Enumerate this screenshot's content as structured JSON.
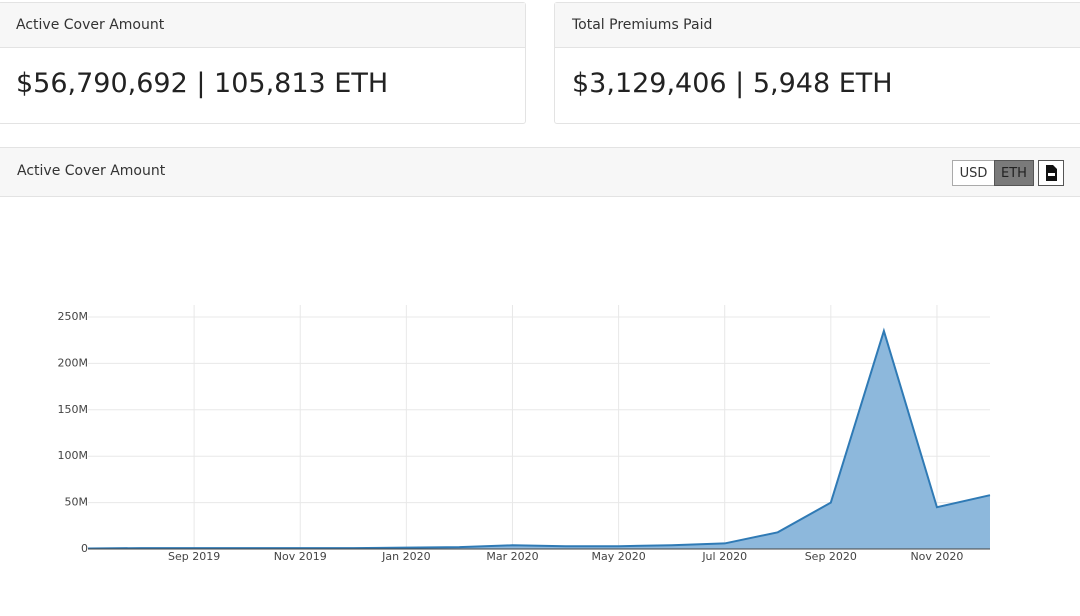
{
  "cards": [
    {
      "title": "Active Cover Amount",
      "value": "$56,790,692 | 105,813 ETH"
    },
    {
      "title": "Total Premiums Paid",
      "value": "$3,129,406 | 5,948 ETH"
    }
  ],
  "panel": {
    "title": "Active Cover Amount",
    "buttons": [
      "USD",
      "ETH"
    ]
  },
  "chart_data": {
    "type": "area",
    "color": "#2f7ab5",
    "fill": "#8db8dc",
    "grid": true,
    "x": [
      "2019-07",
      "2019-08",
      "2019-09",
      "2019-10",
      "2019-11",
      "2019-12",
      "2020-01",
      "2020-02",
      "2020-03",
      "2020-04",
      "2020-05",
      "2020-06",
      "2020-07",
      "2020-08",
      "2020-09",
      "2020-10",
      "2020-11",
      "2020-12"
    ],
    "values": [
      500000,
      1000000,
      1000000,
      1000000,
      1000000,
      1000000,
      1500000,
      2000000,
      4000000,
      3000000,
      3000000,
      4000000,
      6000000,
      18000000,
      50000000,
      235000000,
      45000000,
      58000000
    ],
    "xlim": [
      "2019-07",
      "2020-12"
    ],
    "xticks": [
      {
        "value": "2019-09",
        "label": "Sep 2019"
      },
      {
        "value": "2019-11",
        "label": "Nov 2019"
      },
      {
        "value": "2020-01",
        "label": "Jan 2020"
      },
      {
        "value": "2020-03",
        "label": "Mar 2020"
      },
      {
        "value": "2020-05",
        "label": "May 2020"
      },
      {
        "value": "2020-07",
        "label": "Jul 2020"
      },
      {
        "value": "2020-09",
        "label": "Sep 2020"
      },
      {
        "value": "2020-11",
        "label": "Nov 2020"
      }
    ],
    "ylim": [
      0,
      250000000
    ],
    "yticks": [
      0,
      {
        "value": 50000000,
        "label": "50M"
      },
      {
        "value": 100000000,
        "label": "100M"
      },
      {
        "value": 150000000,
        "label": "150M"
      },
      {
        "value": 200000000,
        "label": "200M"
      },
      {
        "value": 250000000,
        "label": "250M"
      }
    ]
  }
}
